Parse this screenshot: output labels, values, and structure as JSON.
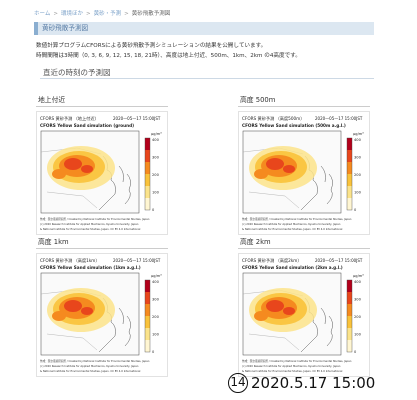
{
  "breadcrumb": {
    "items": [
      "ホーム",
      "環境ほか",
      "黄砂・予測"
    ],
    "current": "黄砂飛散予測図"
  },
  "page_title": "黄砂飛散予測図",
  "intro": {
    "line1": "数値計算プログラムCFORSによる黄砂飛散予測シミュレーションの結果を公開しています。",
    "line2": "時間間隔は3時間（0, 3, 6, 9, 12, 15, 18, 21時）、高度は地上付近、500m、1km、2km の4高度です。"
  },
  "section_heading": "直近の時刻の予測図",
  "panels": [
    {
      "label": "地上付近",
      "map_title_jp": "CFORS 黄砂予測 （地上付近）",
      "timestamp": "2020—05—17 15:00JST",
      "map_title_en": "CFORS Yellow Sand simulation (ground)",
      "credit1": "作成：国立環境研究所 / Created by National Institute for Environmental Studies, Japan",
      "credit2": "(c) 2020 Research Institute for Applied Mechanics, Kyushu University, Japan",
      "credit3": "& National Institute for Environmental Studies, Japan.  CC BY 4.0 International"
    },
    {
      "label": "高度 500m",
      "map_title_jp": "CFORS 黄砂予測 （高度500m）",
      "timestamp": "2020—05—17 15:00JST",
      "map_title_en": "CFORS Yellow Sand simulation (500m a.g.l.)",
      "credit1": "作成：国立環境研究所 / Created by National Institute for Environmental Studies, Japan",
      "credit2": "(c) 2020 Research Institute for Applied Mechanics, Kyushu University, Japan",
      "credit3": "& National Institute for Environmental Studies, Japan.  CC BY 4.0 International"
    },
    {
      "label": "高度 1km",
      "map_title_jp": "CFORS 黄砂予測 （高度1km）",
      "timestamp": "2020—05—17 15:00JST",
      "map_title_en": "CFORS Yellow Sand simulation (1km a.g.l.)",
      "credit1": "作成：国立環境研究所 / Created by National Institute for Environmental Studies, Japan",
      "credit2": "(c) 2020 Research Institute for Applied Mechanics, Kyushu University, Japan",
      "credit3": "& National Institute for Environmental Studies, Japan.  CC BY 4.0 International"
    },
    {
      "label": "高度 2km",
      "map_title_jp": "CFORS 黄砂予測 （高度2km）",
      "timestamp": "2020—05—17 15:00JST",
      "map_title_en": "CFORS Yellow Sand simulation (2km a.g.l.)",
      "credit1": "作成：国立環境研究所 / Created by National Institute for Environmental Studies, Japan",
      "credit2": "(c) 2020 Research Institute for Applied Mechanics, Kyushu University, Japan",
      "credit3": "& National Institute for Environmental Studies, Japan.  CC BY 4.0 International"
    }
  ],
  "colorbar": {
    "unit": "μg/m³",
    "ticks": [
      "400",
      "300",
      "200",
      "100",
      "0"
    ],
    "colors": [
      "#b3001b",
      "#e8461c",
      "#f58a1f",
      "#f9c23a",
      "#fbe38a",
      "#fff6d2"
    ]
  },
  "stamp": {
    "number": "14",
    "datetime": "2020.5.17 15:00"
  }
}
